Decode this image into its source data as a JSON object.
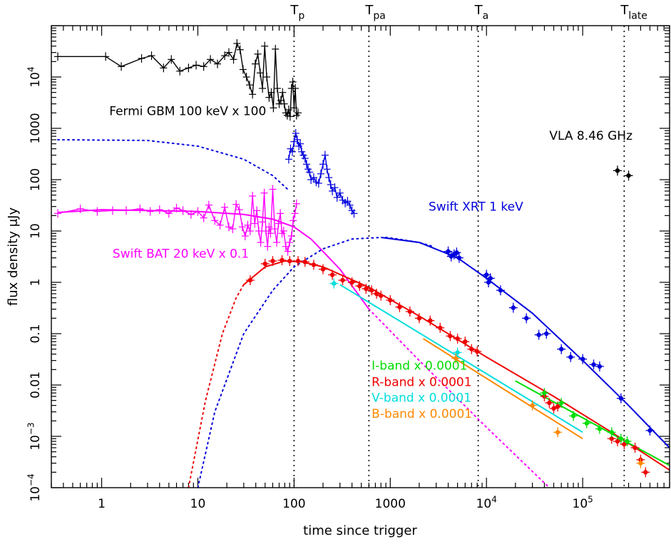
{
  "chart_data": {
    "type": "scatter",
    "xlabel": "time since trigger",
    "ylabel": "flux density μJy",
    "xscale": "log",
    "yscale": "log",
    "xlim": [
      0.3,
      800000
    ],
    "ylim": [
      0.0001,
      100000
    ],
    "x_tick_labels": [
      {
        "x": 1,
        "label": "1"
      },
      {
        "x": 10,
        "label": "10"
      },
      {
        "x": 100,
        "label": "100"
      },
      {
        "x": 1000,
        "label": "1000"
      },
      {
        "x": 10000,
        "label": "10",
        "exp": "4"
      },
      {
        "x": 100000,
        "label": "10",
        "exp": "5"
      }
    ],
    "y_tick_labels": [
      {
        "y": 0.0001,
        "label": "10",
        "exp": "−4"
      },
      {
        "y": 0.001,
        "label": "10",
        "exp": "−3"
      },
      {
        "y": 0.01,
        "label": "0.01"
      },
      {
        "y": 0.1,
        "label": "0.1"
      },
      {
        "y": 1,
        "label": "1"
      },
      {
        "y": 10,
        "label": "10"
      },
      {
        "y": 100,
        "label": "100"
      },
      {
        "y": 1000,
        "label": "1000"
      },
      {
        "y": 10000,
        "label": "10",
        "exp": "4"
      }
    ],
    "vertical_markers": [
      {
        "x": 100,
        "label": "T",
        "sub": "p"
      },
      {
        "x": 600,
        "label": "T",
        "sub": "pa"
      },
      {
        "x": 8200,
        "label": "T",
        "sub": "a"
      },
      {
        "x": 270000,
        "label": "T",
        "sub": "late"
      }
    ],
    "annotations": [
      {
        "text": "Fermi GBM 100 keV x 100",
        "x": 1.2,
        "y": 1800,
        "color": "#000000"
      },
      {
        "text": "VLA 8.46 GHz",
        "x": 45000,
        "y": 600,
        "color": "#000000"
      },
      {
        "text": "Swift XRT 1 keV",
        "x": 2500,
        "y": 25,
        "color": "#0000dd"
      },
      {
        "text": "Swift BAT 20 keV x 0.1",
        "x": 1.3,
        "y": 3,
        "color": "#ff00ff"
      },
      {
        "text": "I-band x 0.0001",
        "x": 640,
        "y": 0.02,
        "color": "#00dd00"
      },
      {
        "text": "R-band x 0.0001",
        "x": 640,
        "y": 0.0095,
        "color": "#ee0000"
      },
      {
        "text": "V-band x 0.0001",
        "x": 640,
        "y": 0.0047,
        "color": "#00dddd"
      },
      {
        "text": "B-band x 0.0001",
        "x": 640,
        "y": 0.0023,
        "color": "#ff8800"
      }
    ],
    "series": [
      {
        "name": "Fermi GBM 100 keV x 100",
        "color": "#000000",
        "style": "line-errors",
        "x": [
          0.35,
          1.1,
          1.6,
          2.6,
          3.3,
          4.4,
          5.3,
          6.5,
          8,
          9.6,
          11.5,
          13.5,
          16,
          19,
          21,
          23.5,
          25.5,
          27.5,
          29.5,
          32,
          34.5,
          37,
          39.5,
          42,
          44.5,
          47,
          49.5,
          52,
          55,
          58,
          61,
          64,
          67,
          70,
          73,
          76,
          79,
          82,
          85,
          88,
          91,
          94,
          97,
          100,
          103,
          106,
          110
        ],
        "y": [
          25000,
          25000,
          16000,
          23000,
          26000,
          15000,
          22000,
          13000,
          15000,
          17000,
          16000,
          22000,
          18000,
          26000,
          30000,
          22000,
          45000,
          34000,
          14000,
          10000,
          7000,
          4600,
          18000,
          28000,
          12000,
          6000,
          40000,
          10000,
          4000,
          5000,
          2500,
          35000,
          6000,
          3000,
          3500,
          5000,
          3000,
          2000,
          1800,
          2300,
          1700,
          6000,
          8000,
          2500,
          6000,
          1800,
          2000
        ]
      },
      {
        "name": "Swift BAT 20 keV x 0.1",
        "color": "#ff00ff",
        "style": "line-errors",
        "x": [
          0.35,
          0.6,
          0.9,
          1.3,
          1.8,
          2.5,
          3.2,
          4,
          5,
          6,
          7,
          8.5,
          10,
          11.5,
          13,
          15,
          17,
          19,
          21,
          23,
          25,
          27,
          29,
          31,
          33,
          35,
          37,
          39,
          41,
          43,
          45,
          47,
          49,
          51,
          53,
          55,
          57,
          60,
          63,
          66,
          69,
          72,
          75,
          78,
          82,
          86,
          90,
          94,
          98,
          102,
          106
        ],
        "y": [
          22,
          27,
          24,
          25,
          25,
          27,
          24,
          26,
          22,
          28,
          25,
          21,
          24,
          18,
          32,
          16,
          13,
          29,
          12,
          11,
          33,
          26,
          12,
          8,
          13,
          10,
          48,
          14,
          25,
          10,
          6,
          15,
          55,
          10,
          5,
          12,
          9,
          65,
          11,
          6,
          14,
          22,
          9,
          10,
          5,
          4,
          6,
          8,
          16,
          22,
          34
        ]
      },
      {
        "name": "Swift XRT 1 keV",
        "color": "#0000dd",
        "style": "line-errors",
        "x": [
          88,
          92,
          96,
          100,
          104,
          108,
          112,
          116,
          120,
          125,
          130,
          135,
          140,
          145,
          150,
          160,
          170,
          180,
          190,
          200,
          210,
          220,
          230,
          240,
          250,
          265,
          280,
          300,
          320,
          340,
          360,
          380,
          400,
          420
        ],
        "y": [
          250,
          400,
          350,
          550,
          800,
          600,
          450,
          500,
          350,
          300,
          260,
          200,
          160,
          140,
          100,
          110,
          90,
          85,
          130,
          200,
          300,
          160,
          110,
          80,
          60,
          70,
          45,
          55,
          40,
          35,
          38,
          32,
          25,
          22
        ]
      },
      {
        "name": "Swift XRT 1 keV",
        "color": "#0000dd",
        "style": "points",
        "x": [
          4000,
          4300,
          4600,
          4900,
          5200,
          10000,
          10500,
          11000,
          14000,
          19000,
          26000,
          35000,
          42000,
          60000,
          75000,
          100000,
          130000,
          150000,
          250000,
          500000
        ],
        "y": [
          4,
          3.2,
          3.5,
          3.8,
          3.0,
          1.4,
          1.0,
          1.2,
          0.7,
          0.32,
          0.2,
          0.095,
          0.1,
          0.05,
          0.035,
          0.032,
          0.025,
          0.023,
          0.0055,
          0.0013
        ]
      },
      {
        "name": "VLA 8.46 GHz",
        "color": "#000000",
        "style": "points",
        "x": [
          230000,
          300000
        ],
        "y": [
          150,
          120
        ]
      },
      {
        "name": "R-band x 0.0001",
        "color": "#ee0000",
        "style": "points",
        "x": [
          35,
          50,
          60,
          75,
          90,
          110,
          130,
          160,
          200,
          250,
          320,
          400,
          480,
          560,
          640,
          720,
          800,
          1000,
          1250,
          1600,
          2000,
          2600,
          3300,
          4200,
          5000,
          6000,
          7000,
          8000,
          40000,
          45000,
          50000,
          55000,
          200000,
          230000,
          270000,
          350000,
          400000,
          450000
        ],
        "y": [
          1.1,
          2.3,
          2.6,
          2.7,
          2.6,
          2.6,
          2.5,
          2.2,
          1.8,
          1.4,
          1.1,
          1.0,
          0.85,
          0.75,
          0.7,
          0.6,
          0.55,
          0.45,
          0.33,
          0.27,
          0.2,
          0.18,
          0.13,
          0.09,
          0.08,
          0.07,
          0.05,
          0.045,
          0.006,
          0.0045,
          0.0035,
          0.0038,
          0.0009,
          0.0008,
          0.0007,
          0.0006,
          0.00035,
          0.0002
        ]
      },
      {
        "name": "I-band x 0.0001",
        "color": "#00dd00",
        "style": "points",
        "x": [
          40000,
          60000,
          80000,
          110000,
          150000,
          200000,
          250000,
          290000
        ],
        "y": [
          0.007,
          0.0045,
          0.0025,
          0.0018,
          0.0014,
          0.0012,
          0.0009,
          0.0008
        ]
      },
      {
        "name": "V-band x 0.0001",
        "color": "#00dddd",
        "style": "points",
        "x": [
          260,
          5000
        ],
        "y": [
          0.95,
          0.043
        ]
      },
      {
        "name": "B-band x 0.0001",
        "color": "#ff8800",
        "style": "points",
        "x": [
          4800,
          30000,
          55000,
          400000
        ],
        "y": [
          0.033,
          0.004,
          0.0012,
          0.0003
        ]
      },
      {
        "name": "Swift BAT 20 keV x 0.1",
        "color": "#ff00ff",
        "style": "model",
        "x": [
          0.35,
          1,
          10,
          30,
          60,
          100,
          150,
          200,
          300,
          600
        ],
        "y": [
          23,
          26,
          24,
          21,
          17,
          12,
          7,
          4,
          1.8,
          0.3
        ]
      },
      {
        "name": "Swift BAT 20 keV x 0.1",
        "color": "#ff00ff",
        "style": "model-dotted",
        "x": [
          600,
          2000,
          10000,
          45000
        ],
        "y": [
          0.3,
          0.03,
          0.0015,
          0.0001
        ]
      },
      {
        "name": "Swift XRT 1 keV",
        "color": "#0000dd",
        "style": "model-dotted",
        "x": [
          0.35,
          3,
          10,
          30,
          60,
          90
        ],
        "y": [
          600,
          580,
          450,
          250,
          120,
          60
        ]
      },
      {
        "name": "Swift XRT 1 keV",
        "color": "#0000dd",
        "style": "model-dotted",
        "x": [
          10,
          15,
          30,
          60,
          100,
          200,
          400,
          800
        ],
        "y": [
          0.0001,
          0.003,
          0.1,
          0.7,
          2,
          4.5,
          7,
          7.5
        ]
      },
      {
        "name": "Swift XRT 1 keV",
        "color": "#0000dd",
        "style": "model",
        "x": [
          800,
          2000,
          5000,
          10000,
          30000,
          100000,
          300000,
          800000
        ],
        "y": [
          7.5,
          6,
          3,
          1.2,
          0.25,
          0.03,
          0.004,
          0.0006
        ]
      },
      {
        "name": "Swift XRT 1 keV",
        "color": "#0000dd",
        "style": "model-dotted",
        "x": [
          900,
          1200,
          1600,
          2100,
          2800
        ],
        "y": [
          7.5,
          7.0,
          6.4,
          5.8,
          5.0
        ]
      },
      {
        "name": "R-band x 0.0001",
        "color": "#ee0000",
        "style": "model-dotted",
        "x": [
          8,
          12,
          18,
          25,
          30
        ],
        "y": [
          0.0001,
          0.005,
          0.1,
          0.5,
          0.9
        ]
      },
      {
        "name": "R-band x 0.0001",
        "color": "#ee0000",
        "style": "model",
        "x": [
          30,
          50,
          80,
          120,
          200,
          600,
          2000,
          10000,
          50000,
          200000,
          800000
        ],
        "y": [
          0.9,
          2.0,
          2.6,
          2.5,
          2.0,
          0.8,
          0.22,
          0.035,
          0.006,
          0.0012,
          0.00022
        ]
      },
      {
        "name": "I-band x 0.0001",
        "color": "#00dd00",
        "style": "model",
        "x": [
          20000,
          800000
        ],
        "y": [
          0.012,
          0.00027
        ]
      },
      {
        "name": "V-band x 0.0001",
        "color": "#00dddd",
        "style": "model",
        "x": [
          300,
          100000
        ],
        "y": [
          0.9,
          0.0012
        ]
      },
      {
        "name": "B-band x 0.0001",
        "color": "#ff8800",
        "style": "model",
        "x": [
          2200,
          100000
        ],
        "y": [
          0.08,
          0.0009
        ]
      }
    ]
  }
}
